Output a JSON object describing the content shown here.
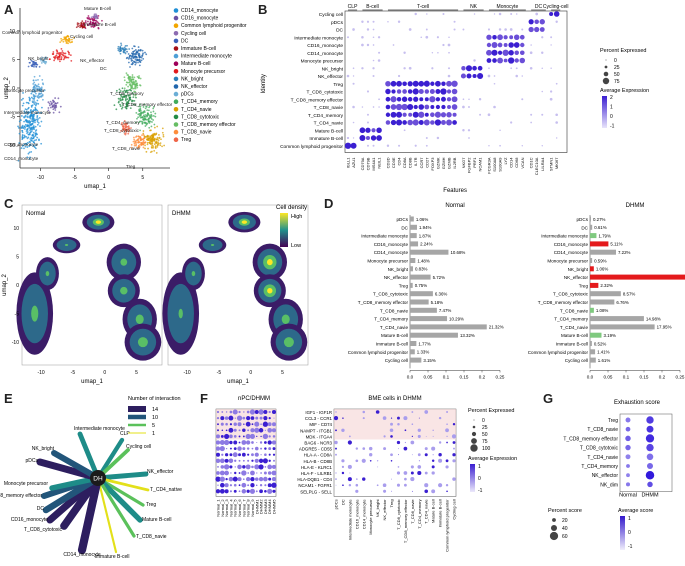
{
  "panels": {
    "a": "A",
    "b": "B",
    "c": "C",
    "d": "D",
    "e": "E",
    "f": "F",
    "g": "G"
  },
  "colors": {
    "CD14_monocyte": "#1f8fd6",
    "CD16_monocyte": "#6a51a3",
    "Common_lymphoid_progenitor": "#f2a600",
    "Cycling_cell": "#8c6bb1",
    "DC": "#3a5fb8",
    "Immature_B_cell": "#a50f15",
    "Intermediate_monocyte": "#4d9fd6",
    "Mature_B_cell": "#9e0059",
    "Monocyte_precursor": "#e31a1c",
    "NK_bright": "#2c7fb8",
    "NK_effector": "#2166ac",
    "pDCs": "#6baed6",
    "T_CD4_memory": "#41ab5d",
    "T_CD4_navie": "#d9a000",
    "T_CD8_cytotoxic": "#238b45",
    "T_CD8_memory_effector": "#66bd63",
    "T_CD8_navie": "#fd8d3c",
    "Treg": "#ef6548",
    "bar_gray": "#a6a6a6",
    "bar_red": "#e41a1c",
    "bar_green": "#7fc97f",
    "dot_purple": "#6b4fd8"
  },
  "chart_data": [
    {
      "id": "umap_a",
      "type": "scatter",
      "xlabel": "umap_1",
      "ylabel": "umap_2",
      "x_ticks": [
        "-10",
        "-5",
        "0",
        "5"
      ],
      "y_ticks": [
        "-10",
        "-5",
        "0",
        "5",
        "10"
      ],
      "cluster_labels": [
        "Mature B-cell",
        "Immature B-cell",
        "Common lymphoid progenitor",
        "Cycling cell",
        "NK_bright",
        "NK_effector",
        "Monocyte precursor",
        "Intermediate monocyte",
        "CD16_monocyte",
        "CD14_monocyte",
        "T_CD8_memory",
        "T_CD8_memory effector",
        "T_CD4_memory",
        "T_CD8_cytotoxic",
        "T_CD8_navie",
        "DC",
        "Treg"
      ],
      "legend": [
        "CD14_monocyte",
        "CD16_monocyte",
        "Common lymphoid progenitor",
        "Cycling cell",
        "DC",
        "Immature B-cell",
        "Intermediate monocyte",
        "Mature B-cell",
        "Monocyte precursor",
        "NK_bright",
        "NK_effector",
        "pDCs",
        "T_CD4_memory",
        "T_CD4_navie",
        "T_CD8_cytotoxic",
        "T_CD8_memory effector",
        "T_CD8_navie",
        "Treg"
      ]
    },
    {
      "id": "dotplot_b",
      "type": "scatter",
      "xlabel": "Features",
      "ylabel": "Identity",
      "groups": [
        "CLP",
        "B-cell",
        "T-cell",
        "NK",
        "Monocyte",
        "DC",
        "Cycling-cell"
      ],
      "rows": [
        "Cycling cell",
        "pDCs",
        "DC",
        "Intermediate monocyte",
        "CD16_monocyte",
        "CD14_monocyte",
        "Monocyte precursor",
        "NK_bright",
        "NK_effector",
        "Treg",
        "T_CD8_cytotoxic",
        "T_CD8_memory effector",
        "T_CD8_navie",
        "T_CD4_memory",
        "T_CD4_navie",
        "Mature B-cell",
        "Immature B-cell",
        "Common lymphoid progenitor"
      ],
      "genes": [
        [
          "IGLL1",
          "AZU1"
        ],
        [
          "CD79A",
          "CD79B",
          "MS4A1",
          "NEIL1"
        ],
        [
          "CD3D",
          "CD3E",
          "CD4",
          "CD8A",
          "CD8B",
          "IL7R",
          "CCR7",
          "CD27",
          "FOXP3",
          "GZMK",
          "GZMH",
          "GZMB",
          "IL2RB"
        ],
        [
          "NKG7",
          "FGFBP2",
          "PRF1",
          "NCAM1"
        ],
        [
          "FCGR3A",
          "S100A8",
          "S100A9",
          "LYZ",
          "CD14",
          "CD68",
          "VCAN"
        ],
        [
          "CD1C",
          "CLEC10A",
          "LILRA4"
        ],
        [
          "STMN1",
          "MKI67"
        ]
      ],
      "legend": {
        "pct_title": "Percent Expressed",
        "pct_values": [
          "0",
          "25",
          "50",
          "75"
        ],
        "avg_title": "Average Expression",
        "avg_ticks": [
          "2",
          "1",
          "0",
          "-1"
        ]
      }
    },
    {
      "id": "density_c",
      "type": "heatmap",
      "facets": [
        "Normal",
        "DHMM"
      ],
      "xlabel": "umap_1",
      "ylabel": "umap_2",
      "x_ticks": [
        "-10",
        "-5",
        "0",
        "5"
      ],
      "y_ticks": [
        "-10",
        "-5",
        "0",
        "5",
        "10"
      ],
      "legend": {
        "title": "Cell density",
        "high": "High",
        "low": "Low"
      }
    },
    {
      "id": "bars_d",
      "type": "bar",
      "categories": [
        "pDCs",
        "DC",
        "Intermediate monocyte",
        "CD16_monocyte",
        "CD14_monocyte",
        "Monocyte precursor",
        "NK_bright",
        "NK_effector",
        "Treg",
        "T_CD8_cytotoxic",
        "T_CD8_memory effector",
        "T_CD8_navie",
        "T_CD4_memory",
        "T_CD4_navie",
        "Mature B-cell",
        "Immature B-cell",
        "Common lymphoid progenitor",
        "Cycling cell"
      ],
      "series": [
        {
          "name": "Normal",
          "values": [
            1.06,
            1.94,
            1.87,
            2.24,
            10.68,
            1.48,
            0.83,
            5.72,
            0.75,
            6.36,
            5.18,
            7.47,
            10.29,
            21.32,
            13.32,
            1.77,
            1.33,
            3.15
          ],
          "labels": [
            "1.06%",
            "1.94%",
            "1.87%",
            "2.24%",
            "10.68%",
            "1.48%",
            "0.83%",
            "5.72%",
            "0.75%",
            "6.36%",
            "5.18%",
            "7.47%",
            "10.29%",
            "21.32%",
            "13.32%",
            "1.77%",
            "1.33%",
            "3.15%"
          ],
          "colors": [
            "gray",
            "gray",
            "gray",
            "gray",
            "gray",
            "gray",
            "gray",
            "gray",
            "gray",
            "gray",
            "gray",
            "gray",
            "gray",
            "gray",
            "gray",
            "gray",
            "gray",
            "gray"
          ]
        },
        {
          "name": "DHMM",
          "values": [
            0.27,
            0.61,
            1.79,
            5.11,
            7.22,
            0.59,
            1.06,
            32.12,
            2.32,
            8.57,
            6.76,
            1.08,
            14.98,
            17.95,
            3.19,
            0.52,
            1.41,
            1.61
          ],
          "labels": [
            "0.27%",
            "0.61%",
            "1.79%",
            "5.11%",
            "7.22%",
            "0.59%",
            "1.06%",
            "32.12%",
            "2.32%",
            "8.57%",
            "6.76%",
            "1.08%",
            "14.98%",
            "17.95%",
            "3.19%",
            "0.52%",
            "1.41%",
            "1.61%"
          ],
          "colors": [
            "gray",
            "gray",
            "green",
            "red",
            "gray",
            "gray",
            "red",
            "red",
            "red",
            "gray",
            "gray",
            "green",
            "gray",
            "gray",
            "green",
            "gray",
            "gray",
            "gray"
          ]
        }
      ],
      "ticks": [
        "0.0",
        "0.05",
        "0.1",
        "0.15",
        "0.2",
        "0.25"
      ],
      "xlim": [
        0,
        0.25
      ]
    },
    {
      "id": "network_e",
      "type": "other",
      "center": "DH",
      "nodes": [
        "CLP",
        "Cycling cell",
        "NK_effector",
        "T_CD4_native",
        "Treg",
        "Mature B-cell",
        "T_CD8_navie",
        "Immature B-cell",
        "CD14_monocyte",
        "T_CD8_cytotoxic",
        "CD16_monocyte",
        "DC",
        "T_CD8_memory effector",
        "Monocyte precursor",
        "pDCs",
        "NK_bright",
        "Intermediate monocyte"
      ],
      "weights": [
        7,
        6,
        8,
        4,
        5,
        9,
        5,
        3,
        14,
        13,
        12,
        11,
        10,
        9,
        12,
        10,
        8
      ],
      "legend": {
        "title": "Number of interaction",
        "values": [
          "14",
          "10",
          "5",
          "1"
        ]
      }
    },
    {
      "id": "dotplot_f",
      "type": "scatter",
      "left_title": "nPC/DHMM",
      "right_title": "BME cells in DHMM",
      "pairs": [
        "IGF1 - IGF1R",
        "CCL3 - CCR1",
        "MIF - CD74",
        "NAMPT - ITGB1",
        "MDK - ITGA4",
        "BAG6 - NCR3",
        "ADGRE5 - CD55",
        "HLA-A - CD8A",
        "HLA-B - CD8B",
        "HLA-E - KLRC1",
        "HLA-F - LILRB1",
        "HLA-DQB1 - CD4",
        "NCAM1 - FGFR1",
        "SELPLG - SELL"
      ],
      "left_x": [
        "Normal_1",
        "Normal_2",
        "Normal_3",
        "Normal_4",
        "Normal_5",
        "Normal_6",
        "Normal_7",
        "Normal_8",
        "Normal_9",
        "DHMM1",
        "DHMM2",
        "DHMM3",
        "DHMM4",
        "DHMM5"
      ],
      "right_x": [
        "pDCs",
        "DC",
        "Intermediate monocyte",
        "CD16_monocyte",
        "CD14_monocyte",
        "Monocyte precursor",
        "NK_bright",
        "NK_effector",
        "Treg",
        "T_CD8_cytotoxic",
        "T_CD8_memory effector",
        "T_CD8_navie",
        "T_CD4_memory",
        "T_CD4_navie",
        "Mature B-cell",
        "Immature B-cell",
        "Common lymphoid progenitor",
        "Cycling cell"
      ],
      "legend": {
        "pct_title": "Percent Expressed",
        "pct_values": [
          "0",
          "25",
          "50",
          "75",
          "100"
        ],
        "avg_title": "Average Expression",
        "avg_ticks": [
          "1",
          "0",
          "-1"
        ]
      }
    },
    {
      "id": "dotplot_g",
      "type": "scatter",
      "title": "Exhaustion score",
      "rows": [
        "Treg",
        "T_CD8_navie",
        "T_CD8_memory effector",
        "T_CD8_cytotoxic",
        "T_CD4_navie",
        "T_CD4_memory",
        "NK_effector",
        "NK_dim"
      ],
      "columns": [
        "Normal",
        "DHMM"
      ],
      "percent": [
        [
          30,
          52
        ],
        [
          28,
          48
        ],
        [
          35,
          60
        ],
        [
          34,
          52
        ],
        [
          30,
          45
        ],
        [
          20,
          40
        ],
        [
          20,
          62
        ],
        [
          22,
          35
        ]
      ],
      "average": [
        [
          0.1,
          0.8
        ],
        [
          0.3,
          0.9
        ],
        [
          0.4,
          1.0
        ],
        [
          0.3,
          0.7
        ],
        [
          0.0,
          0.2
        ],
        [
          0.1,
          0.3
        ],
        [
          0.0,
          1.2
        ],
        [
          0.1,
          0.6
        ]
      ],
      "legend": {
        "pct_title": "Percent score",
        "pct_values": [
          "20",
          "40",
          "60"
        ],
        "avg_title": "Average score",
        "avg_ticks": [
          "1",
          "0",
          "-1"
        ]
      }
    }
  ]
}
